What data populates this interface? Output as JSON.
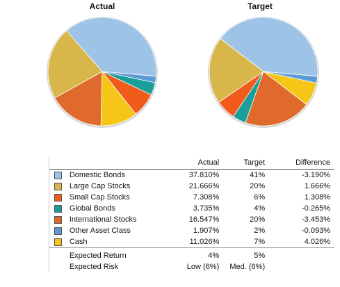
{
  "chart_data": [
    {
      "type": "pie",
      "title": "Actual",
      "categories": [
        "Domestic Bonds",
        "Large Cap Stocks",
        "International Stocks",
        "Cash",
        "Small Cap Stocks",
        "Global Bonds",
        "Other Asset Class"
      ],
      "values": [
        37.81,
        21.666,
        16.547,
        11.026,
        7.308,
        3.735,
        1.907
      ]
    },
    {
      "type": "pie",
      "title": "Target",
      "categories": [
        "Domestic Bonds",
        "Large Cap Stocks",
        "Small Cap Stocks",
        "Global Bonds",
        "International Stocks",
        "Cash",
        "Other Asset Class"
      ],
      "values": [
        41,
        20,
        6,
        4,
        20,
        7,
        2
      ]
    }
  ],
  "colors": {
    "Domestic Bonds": "#9dc3e6",
    "Large Cap Stocks": "#d8b64a",
    "Small Cap Stocks": "#f05a1a",
    "Global Bonds": "#1a9e9a",
    "International Stocks": "#df6a2c",
    "Other Asset Class": "#5b9bd5",
    "Cash": "#f5c518"
  },
  "table": {
    "headers": [
      "Actual",
      "Target",
      "Difference"
    ],
    "rows": [
      {
        "name": "Domestic Bonds",
        "actual": "37.810%",
        "target": "41%",
        "diff": "-3.190%"
      },
      {
        "name": "Large Cap Stocks",
        "actual": "21.666%",
        "target": "20%",
        "diff": "1.666%"
      },
      {
        "name": "Small Cap Stocks",
        "actual": "7.308%",
        "target": "6%",
        "diff": "1.308%"
      },
      {
        "name": "Global Bonds",
        "actual": "3.735%",
        "target": "4%",
        "diff": "-0.265%"
      },
      {
        "name": "International Stocks",
        "actual": "16.547%",
        "target": "20%",
        "diff": "-3.453%"
      },
      {
        "name": "Other Asset Class",
        "actual": "1.907%",
        "target": "2%",
        "diff": "-0.093%"
      },
      {
        "name": "Cash",
        "actual": "11.026%",
        "target": "7%",
        "diff": "4.026%"
      }
    ],
    "summary": [
      {
        "label": "Expected Return",
        "actual": "4%",
        "target": "5%"
      },
      {
        "label": "Expected Risk",
        "actual": "Low (6%)",
        "target": "Med. (6%)"
      }
    ]
  }
}
